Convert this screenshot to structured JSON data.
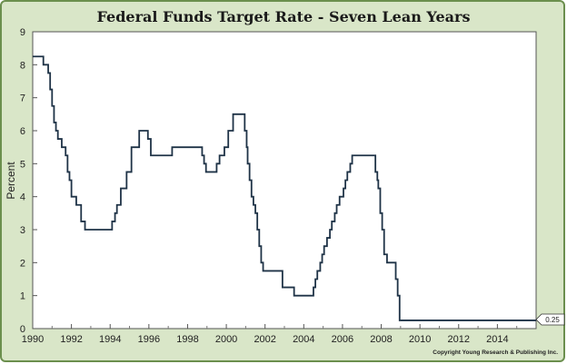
{
  "chart_data": {
    "type": "line",
    "title": "Federal Funds Target Rate - Seven Lean Years",
    "xlabel": "",
    "ylabel": "Percent",
    "xlim": [
      1990,
      2016
    ],
    "ylim": [
      0,
      9
    ],
    "x_ticks": [
      "1990",
      "1992",
      "1994",
      "1996",
      "1998",
      "2000",
      "2002",
      "2004",
      "2006",
      "2008",
      "2010",
      "2012",
      "2014"
    ],
    "y_ticks": [
      "0",
      "1",
      "2",
      "3",
      "4",
      "5",
      "6",
      "7",
      "8",
      "9"
    ],
    "grid": false,
    "legend": "none",
    "end_label": "0.25",
    "copyright": "Copyright Young Research & Publishing Inc.",
    "colors": {
      "line": "#1f3347",
      "plot_bg": "#ffffff",
      "frame_bg": "#d9e6c8",
      "frame_border": "#6b8f4e"
    },
    "series": [
      {
        "x": [
          1990.0,
          1990.55,
          1990.55,
          1990.8,
          1990.8,
          1990.9,
          1990.9,
          1991.0,
          1991.0,
          1991.1,
          1991.1,
          1991.2,
          1991.2,
          1991.3,
          1991.3,
          1991.5,
          1991.5,
          1991.7,
          1991.7,
          1991.8,
          1991.8,
          1991.9,
          1991.9,
          1992.0,
          1992.0,
          1992.25,
          1992.25,
          1992.5,
          1992.5,
          1992.7,
          1992.7,
          1994.1,
          1994.1,
          1994.25,
          1994.25,
          1994.35,
          1994.35,
          1994.55,
          1994.55,
          1994.85,
          1994.85,
          1995.1,
          1995.1,
          1995.5,
          1995.5,
          1995.95,
          1995.95,
          1996.1,
          1996.1,
          1997.2,
          1997.2,
          1998.75,
          1998.75,
          1998.85,
          1998.85,
          1998.95,
          1998.95,
          1999.5,
          1999.5,
          1999.65,
          1999.65,
          1999.9,
          1999.9,
          2000.1,
          2000.1,
          2000.35,
          2000.35,
          2000.95,
          2000.95,
          2001.05,
          2001.05,
          2001.1,
          2001.1,
          2001.2,
          2001.2,
          2001.3,
          2001.3,
          2001.4,
          2001.4,
          2001.5,
          2001.5,
          2001.6,
          2001.6,
          2001.7,
          2001.7,
          2001.8,
          2001.8,
          2001.9,
          2001.9,
          2002.9,
          2002.9,
          2003.5,
          2003.5,
          2004.5,
          2004.5,
          2004.6,
          2004.6,
          2004.7,
          2004.7,
          2004.85,
          2004.85,
          2004.95,
          2004.95,
          2005.05,
          2005.05,
          2005.2,
          2005.2,
          2005.35,
          2005.35,
          2005.45,
          2005.45,
          2005.6,
          2005.6,
          2005.7,
          2005.7,
          2005.85,
          2005.85,
          2006.05,
          2006.05,
          2006.15,
          2006.15,
          2006.25,
          2006.25,
          2006.4,
          2006.4,
          2006.5,
          2006.5,
          2007.7,
          2007.7,
          2007.8,
          2007.8,
          2007.85,
          2007.85,
          2007.95,
          2007.95,
          2008.05,
          2008.05,
          2008.15,
          2008.15,
          2008.3,
          2008.3,
          2008.75,
          2008.75,
          2008.85,
          2008.85,
          2008.95,
          2008.95,
          2016.0
        ],
        "y": [
          8.25,
          8.25,
          8.0,
          8.0,
          7.75,
          7.75,
          7.25,
          7.25,
          6.75,
          6.75,
          6.25,
          6.25,
          6.0,
          6.0,
          5.75,
          5.75,
          5.5,
          5.5,
          5.25,
          5.25,
          4.75,
          4.75,
          4.5,
          4.5,
          4.0,
          4.0,
          3.75,
          3.75,
          3.25,
          3.25,
          3.0,
          3.0,
          3.25,
          3.25,
          3.5,
          3.5,
          3.75,
          3.75,
          4.25,
          4.25,
          4.75,
          4.75,
          5.5,
          5.5,
          6.0,
          6.0,
          5.75,
          5.75,
          5.25,
          5.25,
          5.5,
          5.5,
          5.25,
          5.25,
          5.0,
          5.0,
          4.75,
          4.75,
          5.0,
          5.0,
          5.25,
          5.25,
          5.5,
          5.5,
          6.0,
          6.0,
          6.5,
          6.5,
          6.0,
          6.0,
          5.5,
          5.5,
          5.0,
          5.0,
          4.5,
          4.5,
          4.0,
          4.0,
          3.75,
          3.75,
          3.5,
          3.5,
          3.0,
          3.0,
          2.5,
          2.5,
          2.0,
          2.0,
          1.75,
          1.75,
          1.25,
          1.25,
          1.0,
          1.0,
          1.25,
          1.25,
          1.5,
          1.5,
          1.75,
          1.75,
          2.0,
          2.0,
          2.25,
          2.25,
          2.5,
          2.5,
          2.75,
          2.75,
          3.0,
          3.0,
          3.25,
          3.25,
          3.5,
          3.5,
          3.75,
          3.75,
          4.0,
          4.0,
          4.25,
          4.25,
          4.5,
          4.5,
          4.75,
          4.75,
          5.0,
          5.0,
          5.25,
          5.25,
          4.75,
          4.75,
          4.5,
          4.5,
          4.25,
          4.25,
          3.5,
          3.5,
          3.0,
          3.0,
          2.25,
          2.25,
          2.0,
          2.0,
          1.5,
          1.5,
          1.0,
          1.0,
          0.25,
          0.25
        ]
      }
    ]
  }
}
